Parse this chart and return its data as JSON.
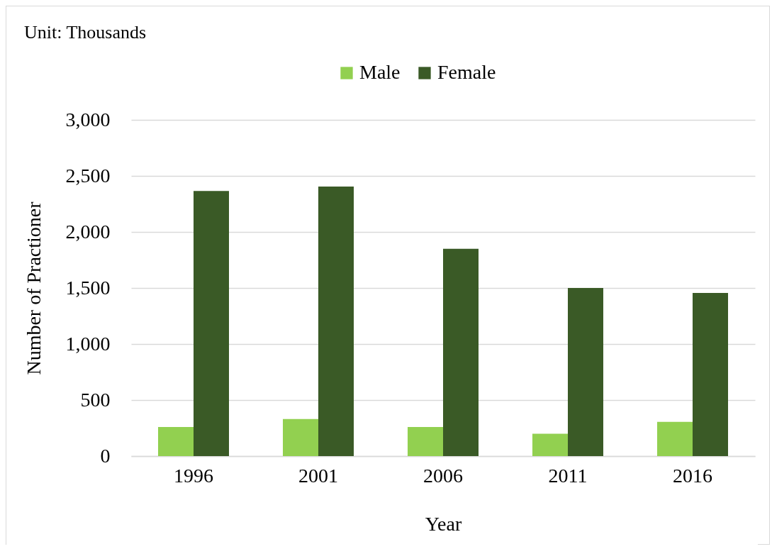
{
  "chart_data": {
    "type": "bar",
    "xlabel": "Year",
    "ylabel": "Number of Practioner",
    "annotations": [
      "Unit: Thousands"
    ],
    "categories": [
      "1996",
      "2001",
      "2006",
      "2011",
      "2016"
    ],
    "series": [
      {
        "name": "Male",
        "color": "#92d050",
        "values": [
          260,
          330,
          260,
          200,
          305
        ]
      },
      {
        "name": "Female",
        "color": "#3a5a26",
        "values": [
          2365,
          2405,
          1850,
          1500,
          1455
        ]
      }
    ],
    "ylim": [
      0,
      3000
    ],
    "yticks": [
      0,
      500,
      {
        "value": 1000,
        "label": "1,000"
      },
      {
        "value": 1500,
        "label": "1,500"
      },
      {
        "value": 2000,
        "label": "2,000"
      },
      {
        "value": 2500,
        "label": "2,500"
      },
      {
        "value": 3000,
        "label": "3,000"
      }
    ],
    "grid": "y",
    "legend": "top"
  }
}
